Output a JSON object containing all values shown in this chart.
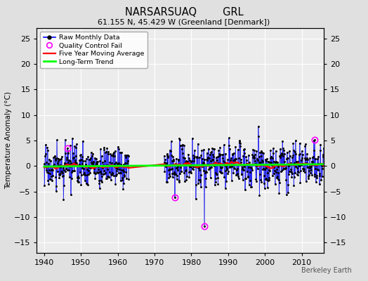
{
  "title": "NARSARSUAQ        GRL",
  "subtitle": "61.155 N, 45.429 W (Greenland [Denmark])",
  "ylabel": "Temperature Anomaly (°C)",
  "watermark": "Berkeley Earth",
  "ylim": [
    -17,
    27
  ],
  "xlim": [
    1938,
    2016
  ],
  "yticks": [
    -15,
    -10,
    -5,
    0,
    5,
    10,
    15,
    20,
    25
  ],
  "xticks": [
    1940,
    1950,
    1960,
    1970,
    1980,
    1990,
    2000,
    2010
  ],
  "bg_color": "#e0e0e0",
  "plot_bg_color": "#ececec",
  "grid_color": "#ffffff",
  "seed": 17,
  "data_start": 1940,
  "data_end": 2015,
  "gap_start": 1963.0,
  "gap_end": 1972.5,
  "qc_points": [
    [
      1946.25,
      3.5
    ],
    [
      1975.5,
      -6.2
    ],
    [
      1983.5,
      -11.8
    ],
    [
      2013.5,
      5.2
    ]
  ],
  "noise_std": 2.8,
  "trend_slope": 0.01
}
